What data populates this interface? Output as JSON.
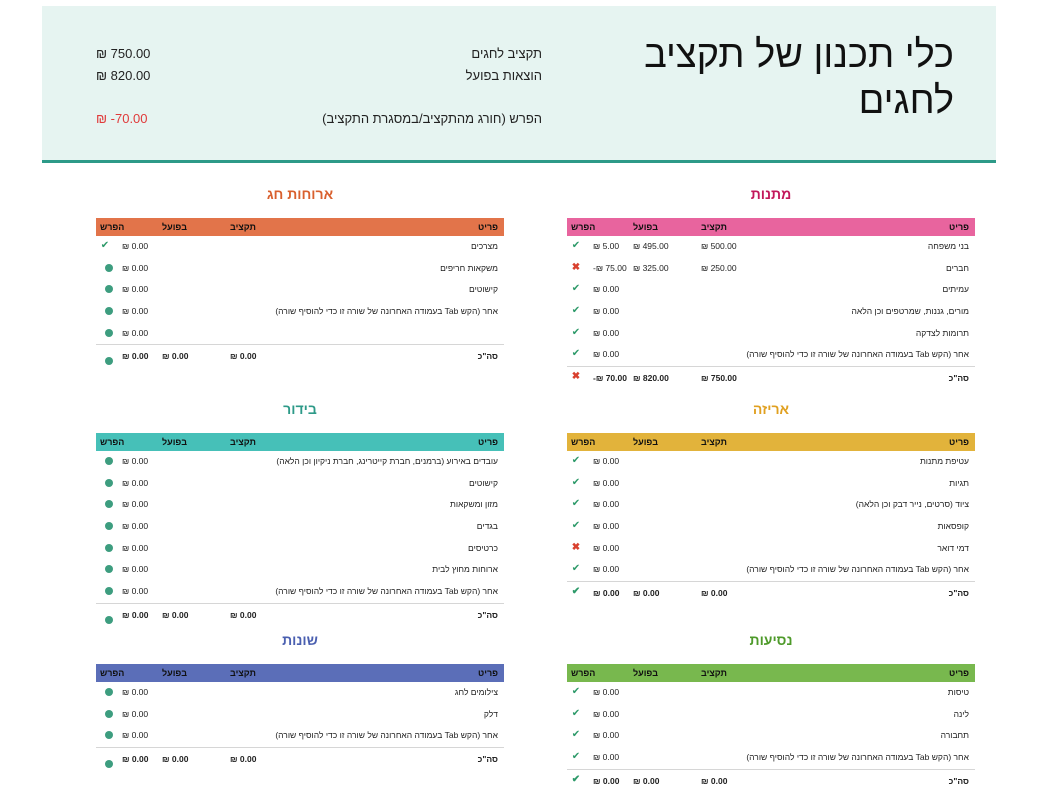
{
  "header": {
    "title": "כלי תכנון של תקציב לחגים",
    "summary": {
      "budget_label": "תקציב לחגים",
      "budget_value": "₪ 750.00",
      "actual_label": "הוצאות בפועל",
      "actual_value": "₪ 820.00",
      "diff_label": "הפרש (חורג מהתקציב/במסגרת התקציב)",
      "diff_value": "₪ -70.00"
    }
  },
  "columns": {
    "item": "פריט",
    "budget": "תקציב",
    "actual": "בפועל",
    "diff": "הפרש",
    "total": "סה\"כ"
  },
  "colors": {
    "gifts": "#e8649e",
    "gifts_title": "#c2185b",
    "meals": "#e2744a",
    "meals_title": "#d9602e",
    "wrap": "#e2b33b",
    "wrap_title": "#e0a020",
    "decor": "#46c0b8",
    "decor_title": "#2d9a88",
    "travel": "#78b84e",
    "travel_title": "#4e9a2a",
    "misc": "#5b6eb8",
    "misc_title": "#4a5fb0"
  },
  "sections": {
    "gifts": {
      "title": "מתנות",
      "rows": [
        {
          "item": "בני משפחה",
          "budget": "₪ 500.00",
          "actual": "₪ 495.00",
          "diff": "₪ 5.00",
          "icon": "check"
        },
        {
          "item": "חברים",
          "budget": "₪ 250.00",
          "actual": "₪ 325.00",
          "diff": "-₪ 75.00",
          "icon": "cross"
        },
        {
          "item": "עמיתים",
          "budget": "",
          "actual": "",
          "diff": "₪ 0.00",
          "icon": "check"
        },
        {
          "item": "מורים, גננות, שמרטפים וכן הלאה",
          "budget": "",
          "actual": "",
          "diff": "₪ 0.00",
          "icon": "check"
        },
        {
          "item": "תרומות לצדקה",
          "budget": "",
          "actual": "",
          "diff": "₪ 0.00",
          "icon": "check"
        },
        {
          "item": "אחר (הקש Tab בעמודה האחרונה של שורה זו כדי להוסיף שורה)",
          "budget": "",
          "actual": "",
          "diff": "₪ 0.00",
          "icon": "check"
        }
      ],
      "total": {
        "budget": "₪ 750.00",
        "actual": "₪ 820.00",
        "diff": "-₪ 70.00",
        "icon": "cross"
      }
    },
    "meals": {
      "title": "ארוחות חג",
      "rows": [
        {
          "item": "מצרכים",
          "budget": "",
          "actual": "",
          "diff": "₪ 0.00",
          "icon": "check"
        },
        {
          "item": "משקאות חריפים",
          "budget": "",
          "actual": "",
          "diff": "₪ 0.00",
          "icon": "dot"
        },
        {
          "item": "קישוטים",
          "budget": "",
          "actual": "",
          "diff": "₪ 0.00",
          "icon": "dot"
        },
        {
          "item": "אחר (הקש Tab בעמודה האחרונה של שורה זו כדי להוסיף שורה)",
          "budget": "",
          "actual": "",
          "diff": "₪ 0.00",
          "icon": "dot"
        },
        {
          "item": "",
          "budget": "",
          "actual": "",
          "diff": "₪ 0.00",
          "icon": "dot"
        }
      ],
      "total": {
        "budget": "₪ 0.00",
        "actual": "₪ 0.00",
        "diff": "₪ 0.00",
        "icon": "dot"
      }
    },
    "wrap": {
      "title": "אריזה",
      "rows": [
        {
          "item": "עטיפת מתנות",
          "budget": "",
          "actual": "",
          "diff": "₪ 0.00",
          "icon": "check"
        },
        {
          "item": "תגיות",
          "budget": "",
          "actual": "",
          "diff": "₪ 0.00",
          "icon": "check"
        },
        {
          "item": "ציוד (סרטים, נייר דבק וכן הלאה)",
          "budget": "",
          "actual": "",
          "diff": "₪ 0.00",
          "icon": "check"
        },
        {
          "item": "קופסאות",
          "budget": "",
          "actual": "",
          "diff": "₪ 0.00",
          "icon": "check"
        },
        {
          "item": "דמי דואר",
          "budget": "",
          "actual": "",
          "diff": "₪ 0.00",
          "icon": "cross"
        },
        {
          "item": "אחר (הקש Tab בעמודה האחרונה של שורה זו כדי להוסיף שורה)",
          "budget": "",
          "actual": "",
          "diff": "₪ 0.00",
          "icon": "check"
        }
      ],
      "total": {
        "budget": "₪ 0.00",
        "actual": "₪ 0.00",
        "diff": "₪ 0.00",
        "icon": "check"
      }
    },
    "decor": {
      "title": "בידור",
      "rows": [
        {
          "item": "עובדים באירוע (ברמנים, חברת קייטרינג, חברת ניקיון וכן הלאה)",
          "budget": "",
          "actual": "",
          "diff": "₪ 0.00",
          "icon": "dot"
        },
        {
          "item": "קישוטים",
          "budget": "",
          "actual": "",
          "diff": "₪ 0.00",
          "icon": "dot"
        },
        {
          "item": "מזון ומשקאות",
          "budget": "",
          "actual": "",
          "diff": "₪ 0.00",
          "icon": "dot"
        },
        {
          "item": "בגדים",
          "budget": "",
          "actual": "",
          "diff": "₪ 0.00",
          "icon": "dot"
        },
        {
          "item": "כרטיסים",
          "budget": "",
          "actual": "",
          "diff": "₪ 0.00",
          "icon": "dot"
        },
        {
          "item": "ארוחות מחוץ לבית",
          "budget": "",
          "actual": "",
          "diff": "₪ 0.00",
          "icon": "dot"
        },
        {
          "item": "אחר (הקש Tab בעמודה האחרונה של שורה זו כדי להוסיף שורה)",
          "budget": "",
          "actual": "",
          "diff": "₪ 0.00",
          "icon": "dot"
        }
      ],
      "total": {
        "budget": "₪ 0.00",
        "actual": "₪ 0.00",
        "diff": "₪ 0.00",
        "icon": "dot"
      }
    },
    "travel": {
      "title": "נסיעות",
      "rows": [
        {
          "item": "טיסות",
          "budget": "",
          "actual": "",
          "diff": "₪ 0.00",
          "icon": "check"
        },
        {
          "item": "לינה",
          "budget": "",
          "actual": "",
          "diff": "₪ 0.00",
          "icon": "check"
        },
        {
          "item": "תחבורה",
          "budget": "",
          "actual": "",
          "diff": "₪ 0.00",
          "icon": "check"
        },
        {
          "item": "אחר (הקש Tab בעמודה האחרונה של שורה זו כדי להוסיף שורה)",
          "budget": "",
          "actual": "",
          "diff": "₪ 0.00",
          "icon": "check"
        }
      ],
      "total": {
        "budget": "₪ 0.00",
        "actual": "₪ 0.00",
        "diff": "₪ 0.00",
        "icon": "check"
      }
    },
    "misc": {
      "title": "שונות",
      "rows": [
        {
          "item": "צילומים לחג",
          "budget": "",
          "actual": "",
          "diff": "₪ 0.00",
          "icon": "dot"
        },
        {
          "item": "דלק",
          "budget": "",
          "actual": "",
          "diff": "₪ 0.00",
          "icon": "dot"
        },
        {
          "item": "אחר (הקש Tab בעמודה האחרונה של שורה זו כדי להוסיף שורה)",
          "budget": "",
          "actual": "",
          "diff": "₪ 0.00",
          "icon": "dot"
        }
      ],
      "total": {
        "budget": "₪ 0.00",
        "actual": "₪ 0.00",
        "diff": "₪ 0.00",
        "icon": "dot"
      }
    }
  }
}
